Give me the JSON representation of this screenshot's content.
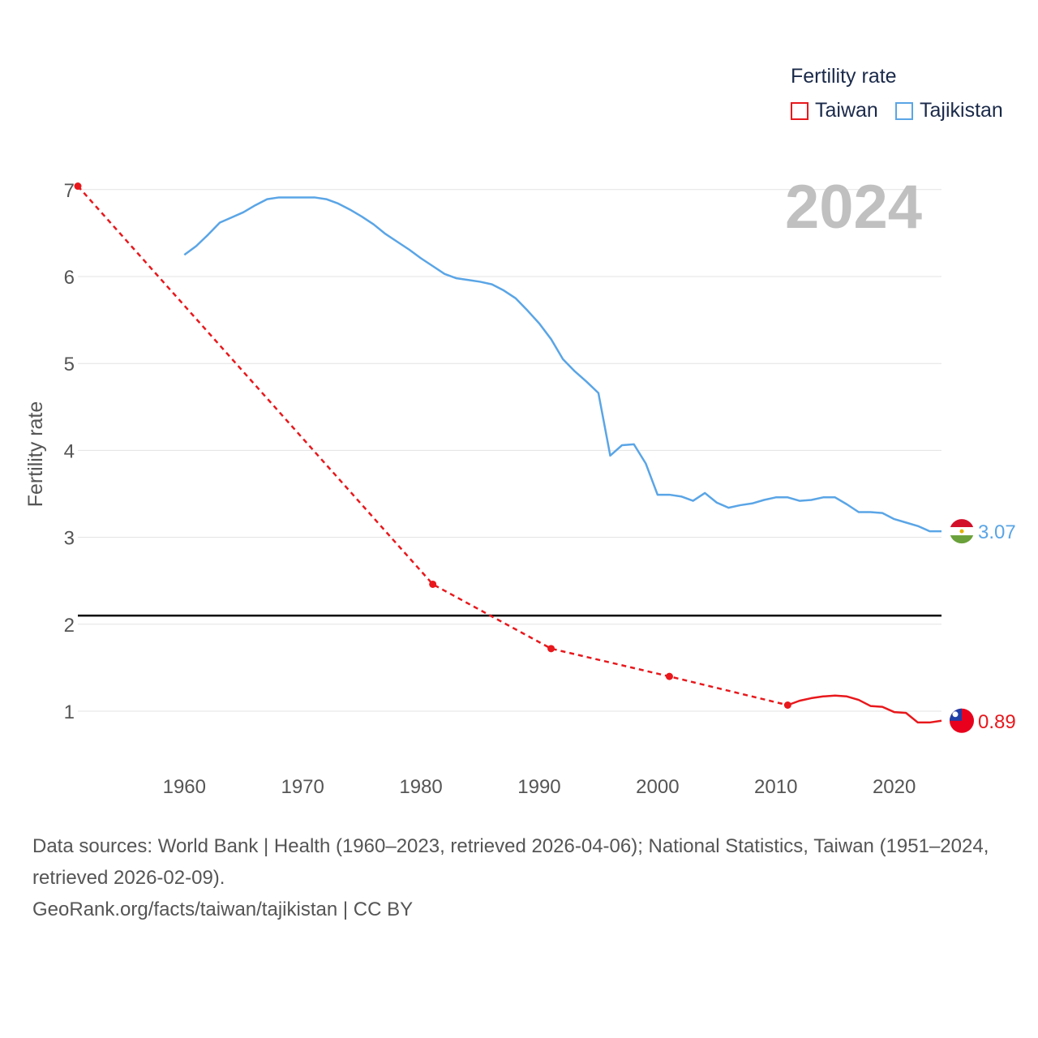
{
  "legend": {
    "title": "Fertility rate",
    "items": [
      {
        "label": "Taiwan",
        "color": "#e8181c"
      },
      {
        "label": "Tajikistan",
        "color": "#5aa5e6"
      }
    ]
  },
  "year_label": "2024",
  "footer": {
    "sources": "Data sources: World Bank | Health (1960–2023, retrieved 2026-04-06); National Statistics, Taiwan (1951–2024, retrieved 2026-02-09).",
    "attribution": "GeoRank.org/facts/taiwan/tajikistan | CC BY"
  },
  "chart_data": {
    "type": "line",
    "title": "Fertility rate",
    "xlabel": "",
    "ylabel": "Fertility rate",
    "xlim": [
      1951,
      2024
    ],
    "ylim": [
      0.5,
      7.2
    ],
    "x_ticks": [
      "1960",
      "1970",
      "1980",
      "1990",
      "2000",
      "2010",
      "2020"
    ],
    "y_ticks": [
      "1",
      "2",
      "3",
      "4",
      "5",
      "6",
      "7"
    ],
    "grid": true,
    "reference_line": {
      "value": 2.1,
      "color": "#000000"
    },
    "series": [
      {
        "name": "Taiwan",
        "color": "#e8181c",
        "end_label": "0.89",
        "sparse_points": [
          [
            1951,
            7.04
          ],
          [
            1981,
            2.46
          ],
          [
            1991,
            1.72
          ],
          [
            2001,
            1.4
          ],
          [
            2011,
            1.07
          ]
        ],
        "annual_points": [
          [
            2011,
            1.07
          ],
          [
            2012,
            1.12
          ],
          [
            2013,
            1.15
          ],
          [
            2014,
            1.17
          ],
          [
            2015,
            1.18
          ],
          [
            2016,
            1.17
          ],
          [
            2017,
            1.13
          ],
          [
            2018,
            1.06
          ],
          [
            2019,
            1.05
          ],
          [
            2020,
            0.99
          ],
          [
            2021,
            0.98
          ],
          [
            2022,
            0.87
          ],
          [
            2023,
            0.87
          ],
          [
            2024,
            0.89
          ]
        ]
      },
      {
        "name": "Tajikistan",
        "color": "#5aa5e6",
        "end_label": "3.07",
        "points": [
          [
            1960,
            6.25
          ],
          [
            1961,
            6.35
          ],
          [
            1962,
            6.48
          ],
          [
            1963,
            6.62
          ],
          [
            1964,
            6.68
          ],
          [
            1965,
            6.74
          ],
          [
            1966,
            6.82
          ],
          [
            1967,
            6.89
          ],
          [
            1968,
            6.91
          ],
          [
            1969,
            6.91
          ],
          [
            1970,
            6.91
          ],
          [
            1971,
            6.91
          ],
          [
            1972,
            6.89
          ],
          [
            1973,
            6.84
          ],
          [
            1974,
            6.77
          ],
          [
            1975,
            6.69
          ],
          [
            1976,
            6.6
          ],
          [
            1977,
            6.49
          ],
          [
            1978,
            6.4
          ],
          [
            1979,
            6.31
          ],
          [
            1980,
            6.21
          ],
          [
            1981,
            6.12
          ],
          [
            1982,
            6.03
          ],
          [
            1983,
            5.98
          ],
          [
            1984,
            5.96
          ],
          [
            1985,
            5.94
          ],
          [
            1986,
            5.91
          ],
          [
            1987,
            5.84
          ],
          [
            1988,
            5.75
          ],
          [
            1989,
            5.61
          ],
          [
            1990,
            5.46
          ],
          [
            1991,
            5.28
          ],
          [
            1992,
            5.05
          ],
          [
            1993,
            4.91
          ],
          [
            1994,
            4.79
          ],
          [
            1995,
            4.66
          ],
          [
            1996,
            3.94
          ],
          [
            1997,
            4.06
          ],
          [
            1998,
            4.07
          ],
          [
            1999,
            3.85
          ],
          [
            2000,
            3.49
          ],
          [
            2001,
            3.49
          ],
          [
            2002,
            3.47
          ],
          [
            2003,
            3.42
          ],
          [
            2004,
            3.51
          ],
          [
            2005,
            3.4
          ],
          [
            2006,
            3.34
          ],
          [
            2007,
            3.37
          ],
          [
            2008,
            3.39
          ],
          [
            2009,
            3.43
          ],
          [
            2010,
            3.46
          ],
          [
            2011,
            3.46
          ],
          [
            2012,
            3.42
          ],
          [
            2013,
            3.43
          ],
          [
            2014,
            3.46
          ],
          [
            2015,
            3.46
          ],
          [
            2016,
            3.38
          ],
          [
            2017,
            3.29
          ],
          [
            2018,
            3.29
          ],
          [
            2019,
            3.28
          ],
          [
            2020,
            3.21
          ],
          [
            2021,
            3.17
          ],
          [
            2022,
            3.13
          ],
          [
            2023,
            3.07
          ],
          [
            2024,
            3.07
          ]
        ]
      }
    ]
  }
}
